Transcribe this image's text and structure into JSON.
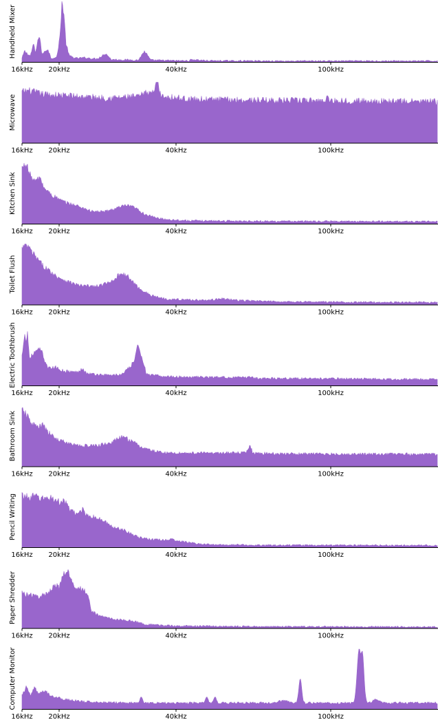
{
  "chart_data": [
    {
      "type": "area",
      "ylabel": "Handheld Mixer",
      "xticks": [
        "16kHz",
        "20kHz",
        "40kHz",
        "100kHz"
      ],
      "profile": [
        [
          0,
          0.06
        ],
        [
          0.6,
          0.18
        ],
        [
          1.2,
          0.14
        ],
        [
          2,
          0.1
        ],
        [
          2.8,
          0.3
        ],
        [
          3.2,
          0.14
        ],
        [
          4.2,
          0.46
        ],
        [
          4.8,
          0.12
        ],
        [
          6.2,
          0.22
        ],
        [
          7,
          0.06
        ],
        [
          8.4,
          0.08
        ],
        [
          9.2,
          0.45
        ],
        [
          9.6,
          1
        ],
        [
          10.1,
          0.78
        ],
        [
          10.6,
          0.3
        ],
        [
          11.4,
          0.1
        ],
        [
          13,
          0.06
        ],
        [
          15,
          0.07
        ],
        [
          18,
          0.05
        ],
        [
          20.2,
          0.14
        ],
        [
          21.5,
          0.04
        ],
        [
          28,
          0.03
        ],
        [
          29.5,
          0.18
        ],
        [
          31,
          0.03
        ],
        [
          38,
          0.02
        ],
        [
          40,
          0.02
        ],
        [
          41,
          0.04
        ],
        [
          45,
          0.02
        ],
        [
          60,
          0.015
        ],
        [
          100,
          0.015
        ]
      ],
      "spikes": []
    },
    {
      "type": "area",
      "ylabel": "Microwave",
      "xticks": [
        "16kHz",
        "20kHz",
        "40kHz",
        "100kHz"
      ],
      "profile": [
        [
          0,
          0.84
        ],
        [
          1.5,
          0.86
        ],
        [
          5,
          0.8
        ],
        [
          10,
          0.78
        ],
        [
          20,
          0.74
        ],
        [
          28,
          0.76
        ],
        [
          30.5,
          0.84
        ],
        [
          33,
          0.78
        ],
        [
          40,
          0.72
        ],
        [
          60,
          0.7
        ],
        [
          80,
          0.69
        ],
        [
          100,
          0.68
        ]
      ],
      "spikes": [
        [
          32.5,
          1.12,
          0.35
        ],
        [
          73.5,
          0.78,
          0.25
        ]
      ]
    },
    {
      "type": "area",
      "ylabel": "Kitchen Sink",
      "xticks": [
        "16kHz",
        "20kHz",
        "40kHz",
        "100kHz"
      ],
      "profile": [
        [
          0,
          0.92
        ],
        [
          1,
          1
        ],
        [
          1.8,
          0.82
        ],
        [
          3,
          0.7
        ],
        [
          4.5,
          0.76
        ],
        [
          5,
          0.62
        ],
        [
          7,
          0.48
        ],
        [
          10,
          0.36
        ],
        [
          14,
          0.28
        ],
        [
          17,
          0.2
        ],
        [
          20,
          0.2
        ],
        [
          23,
          0.26
        ],
        [
          25,
          0.3
        ],
        [
          27,
          0.27
        ],
        [
          29.5,
          0.16
        ],
        [
          32,
          0.1
        ],
        [
          35,
          0.07
        ],
        [
          40,
          0.05
        ],
        [
          60,
          0.04
        ],
        [
          100,
          0.035
        ]
      ],
      "spikes": []
    },
    {
      "type": "area",
      "ylabel": "Toilet Flush",
      "xticks": [
        "16kHz",
        "20kHz",
        "40kHz",
        "100kHz"
      ],
      "profile": [
        [
          0,
          0.92
        ],
        [
          1,
          1
        ],
        [
          2.5,
          0.85
        ],
        [
          5,
          0.64
        ],
        [
          8,
          0.48
        ],
        [
          11,
          0.38
        ],
        [
          14,
          0.31
        ],
        [
          18,
          0.3
        ],
        [
          21,
          0.36
        ],
        [
          24,
          0.52
        ],
        [
          25.5,
          0.46
        ],
        [
          28,
          0.28
        ],
        [
          31,
          0.15
        ],
        [
          35,
          0.09
        ],
        [
          40,
          0.08
        ],
        [
          45,
          0.07
        ],
        [
          48,
          0.1
        ],
        [
          52,
          0.07
        ],
        [
          60,
          0.05
        ],
        [
          80,
          0.04
        ],
        [
          100,
          0.035
        ]
      ],
      "spikes": []
    },
    {
      "type": "area",
      "ylabel": "Electric Toothbrush",
      "xticks": [
        "16kHz",
        "20kHz",
        "40kHz",
        "100kHz"
      ],
      "profile": [
        [
          0,
          0.48
        ],
        [
          0.6,
          0.88
        ],
        [
          1,
          0.7
        ],
        [
          1.3,
          0.9
        ],
        [
          1.8,
          0.45
        ],
        [
          3,
          0.54
        ],
        [
          4.5,
          0.6
        ],
        [
          5.5,
          0.4
        ],
        [
          6.5,
          0.28
        ],
        [
          8,
          0.3
        ],
        [
          10,
          0.24
        ],
        [
          13,
          0.22
        ],
        [
          14.5,
          0.28
        ],
        [
          15.5,
          0.2
        ],
        [
          18,
          0.18
        ],
        [
          21,
          0.17
        ],
        [
          24,
          0.18
        ],
        [
          26,
          0.3
        ],
        [
          27,
          0.4
        ],
        [
          28,
          0.68
        ],
        [
          29,
          0.44
        ],
        [
          30,
          0.18
        ],
        [
          34,
          0.15
        ],
        [
          40,
          0.14
        ],
        [
          54,
          0.13
        ],
        [
          55,
          0.15
        ],
        [
          56,
          0.12
        ],
        [
          80,
          0.11
        ],
        [
          100,
          0.1
        ]
      ],
      "spikes": []
    },
    {
      "type": "area",
      "ylabel": "Bathroom Sink",
      "xticks": [
        "16kHz",
        "20kHz",
        "40kHz",
        "100kHz"
      ],
      "profile": [
        [
          0,
          0.92
        ],
        [
          1,
          0.85
        ],
        [
          2.5,
          0.7
        ],
        [
          4,
          0.64
        ],
        [
          5,
          0.68
        ],
        [
          6,
          0.58
        ],
        [
          8,
          0.46
        ],
        [
          11,
          0.38
        ],
        [
          14,
          0.34
        ],
        [
          18,
          0.34
        ],
        [
          21,
          0.38
        ],
        [
          24,
          0.48
        ],
        [
          26,
          0.44
        ],
        [
          28,
          0.34
        ],
        [
          31,
          0.26
        ],
        [
          35,
          0.22
        ],
        [
          40,
          0.22
        ],
        [
          50,
          0.22
        ],
        [
          54,
          0.22
        ],
        [
          54.8,
          0.35
        ],
        [
          55.6,
          0.22
        ],
        [
          60,
          0.21
        ],
        [
          80,
          0.2
        ],
        [
          100,
          0.2
        ]
      ],
      "spikes": []
    },
    {
      "type": "area",
      "ylabel": "Pencil Writing",
      "xticks": [
        "16kHz",
        "20kHz",
        "40kHz",
        "100kHz"
      ],
      "profile": [
        [
          0,
          0.86
        ],
        [
          1.5,
          0.82
        ],
        [
          3,
          0.84
        ],
        [
          5,
          0.8
        ],
        [
          7,
          0.82
        ],
        [
          9,
          0.74
        ],
        [
          10,
          0.78
        ],
        [
          11.5,
          0.62
        ],
        [
          13,
          0.54
        ],
        [
          14.5,
          0.62
        ],
        [
          16,
          0.52
        ],
        [
          18,
          0.48
        ],
        [
          20,
          0.42
        ],
        [
          21.5,
          0.34
        ],
        [
          24,
          0.3
        ],
        [
          26,
          0.24
        ],
        [
          28,
          0.16
        ],
        [
          31,
          0.13
        ],
        [
          34,
          0.12
        ],
        [
          36,
          0.13
        ],
        [
          38,
          0.1
        ],
        [
          42,
          0.06
        ],
        [
          46,
          0.04
        ],
        [
          60,
          0.035
        ],
        [
          100,
          0.03
        ]
      ],
      "spikes": []
    },
    {
      "type": "area",
      "ylabel": "Paper Shredder",
      "xticks": [
        "16kHz",
        "20kHz",
        "40kHz",
        "100kHz"
      ],
      "profile": [
        [
          0,
          0.58
        ],
        [
          2,
          0.54
        ],
        [
          4,
          0.52
        ],
        [
          6,
          0.56
        ],
        [
          7,
          0.64
        ],
        [
          8,
          0.74
        ],
        [
          9,
          0.66
        ],
        [
          10,
          0.88
        ],
        [
          11,
          0.94
        ],
        [
          11.8,
          0.78
        ],
        [
          13,
          0.68
        ],
        [
          15,
          0.62
        ],
        [
          16,
          0.56
        ],
        [
          16.5,
          0.3
        ],
        [
          18,
          0.22
        ],
        [
          20,
          0.18
        ],
        [
          23,
          0.14
        ],
        [
          25,
          0.13
        ],
        [
          27,
          0.11
        ],
        [
          30,
          0.06
        ],
        [
          35,
          0.04
        ],
        [
          45,
          0.03
        ],
        [
          60,
          0.025
        ],
        [
          100,
          0.02
        ]
      ],
      "spikes": []
    },
    {
      "type": "area",
      "ylabel": "Computer Monitor",
      "xticks": [
        "16kHz",
        "20kHz",
        "40kHz",
        "100kHz"
      ],
      "profile": [
        [
          0,
          0.22
        ],
        [
          1,
          0.36
        ],
        [
          2,
          0.22
        ],
        [
          3,
          0.36
        ],
        [
          4,
          0.24
        ],
        [
          5.5,
          0.3
        ],
        [
          7,
          0.22
        ],
        [
          10,
          0.16
        ],
        [
          15,
          0.12
        ],
        [
          20,
          0.11
        ],
        [
          30,
          0.1
        ],
        [
          40,
          0.1
        ],
        [
          50,
          0.1
        ],
        [
          60,
          0.1
        ],
        [
          63,
          0.14
        ],
        [
          65,
          0.1
        ],
        [
          80,
          0.1
        ],
        [
          84,
          0.11
        ],
        [
          85,
          0.15
        ],
        [
          87,
          0.1
        ],
        [
          100,
          0.1
        ]
      ],
      "spikes": [
        [
          28.7,
          0.2,
          0.3
        ],
        [
          44.5,
          0.2,
          0.3
        ],
        [
          46.5,
          0.2,
          0.3
        ],
        [
          67,
          0.5,
          0.35
        ],
        [
          81.2,
          1,
          0.5
        ],
        [
          81.9,
          0.96,
          0.4
        ]
      ]
    }
  ],
  "series_color": "#9966cc"
}
